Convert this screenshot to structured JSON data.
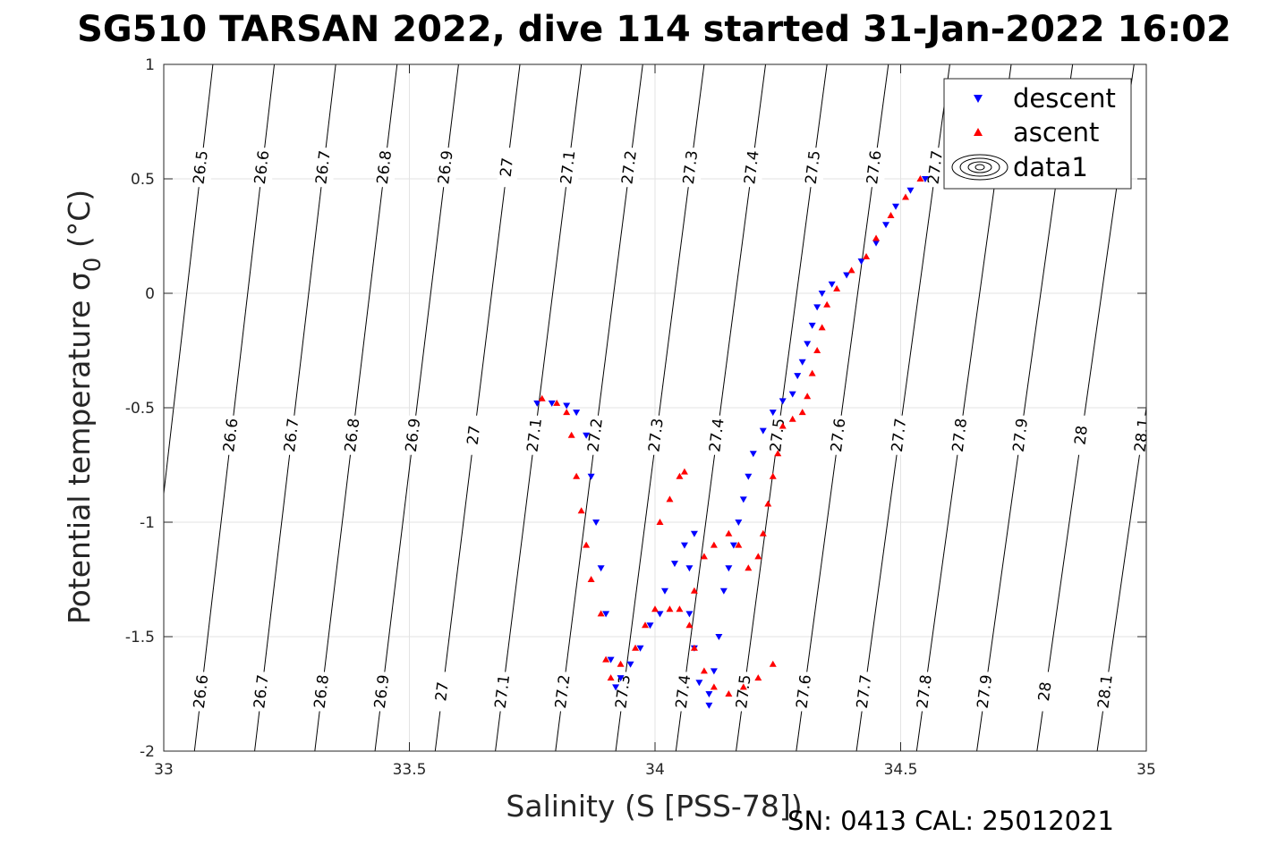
{
  "footer": "SN: 0413  CAL: 25012021",
  "chart_data": {
    "type": "scatter",
    "title": "SG510 TARSAN 2022, dive 114 started 31-Jan-2022 16:02",
    "xlabel": "Salinity (S [PSS-78])",
    "ylabel": "Potential temperature σ0 (°C)",
    "xlim": [
      33,
      35
    ],
    "ylim": [
      -2,
      1
    ],
    "xticks": [
      33,
      33.5,
      34,
      34.5,
      35
    ],
    "xtick_labels": [
      "33",
      "33.5",
      "34",
      "34.5",
      "35"
    ],
    "yticks": [
      -2,
      -1.5,
      -1,
      -0.5,
      0,
      0.5,
      1
    ],
    "ytick_labels": [
      "-2",
      "-1.5",
      "-1",
      "-0.5",
      "0",
      "0.5",
      "1"
    ],
    "grid": true,
    "legend_position": "top-right",
    "legend": [
      "descent",
      "ascent",
      "data1"
    ],
    "series": [
      {
        "name": "descent",
        "marker": "triangle-down",
        "color": "#0000ff",
        "points": [
          [
            34.55,
            0.5
          ],
          [
            34.52,
            0.45
          ],
          [
            34.49,
            0.38
          ],
          [
            34.47,
            0.3
          ],
          [
            34.45,
            0.22
          ],
          [
            34.42,
            0.14
          ],
          [
            34.39,
            0.08
          ],
          [
            34.36,
            0.04
          ],
          [
            34.34,
            0.0
          ],
          [
            34.33,
            -0.06
          ],
          [
            34.32,
            -0.14
          ],
          [
            34.31,
            -0.22
          ],
          [
            34.3,
            -0.3
          ],
          [
            34.29,
            -0.36
          ],
          [
            34.28,
            -0.44
          ],
          [
            34.26,
            -0.47
          ],
          [
            34.24,
            -0.52
          ],
          [
            34.22,
            -0.6
          ],
          [
            34.2,
            -0.7
          ],
          [
            34.19,
            -0.8
          ],
          [
            34.18,
            -0.9
          ],
          [
            34.17,
            -1.0
          ],
          [
            34.16,
            -1.1
          ],
          [
            34.15,
            -1.2
          ],
          [
            34.14,
            -1.3
          ],
          [
            34.13,
            -1.5
          ],
          [
            34.12,
            -1.65
          ],
          [
            34.11,
            -1.75
          ],
          [
            34.11,
            -1.8
          ],
          [
            34.09,
            -1.7
          ],
          [
            34.08,
            -1.55
          ],
          [
            34.07,
            -1.4
          ],
          [
            34.07,
            -1.2
          ],
          [
            34.08,
            -1.05
          ],
          [
            34.06,
            -1.1
          ],
          [
            34.04,
            -1.18
          ],
          [
            34.02,
            -1.3
          ],
          [
            34.01,
            -1.4
          ],
          [
            33.99,
            -1.45
          ],
          [
            33.97,
            -1.55
          ],
          [
            33.95,
            -1.62
          ],
          [
            33.93,
            -1.68
          ],
          [
            33.92,
            -1.72
          ],
          [
            33.91,
            -1.6
          ],
          [
            33.9,
            -1.4
          ],
          [
            33.89,
            -1.2
          ],
          [
            33.88,
            -1.0
          ],
          [
            33.87,
            -0.8
          ],
          [
            33.86,
            -0.62
          ],
          [
            33.84,
            -0.52
          ],
          [
            33.82,
            -0.49
          ],
          [
            33.79,
            -0.48
          ],
          [
            33.76,
            -0.48
          ]
        ]
      },
      {
        "name": "ascent",
        "marker": "triangle-up",
        "color": "#ff0000",
        "points": [
          [
            34.54,
            0.5
          ],
          [
            34.51,
            0.42
          ],
          [
            34.48,
            0.34
          ],
          [
            34.45,
            0.24
          ],
          [
            34.43,
            0.16
          ],
          [
            34.4,
            0.1
          ],
          [
            34.37,
            0.02
          ],
          [
            34.35,
            -0.05
          ],
          [
            34.34,
            -0.15
          ],
          [
            34.33,
            -0.25
          ],
          [
            34.32,
            -0.35
          ],
          [
            34.31,
            -0.45
          ],
          [
            34.3,
            -0.52
          ],
          [
            34.28,
            -0.55
          ],
          [
            34.26,
            -0.58
          ],
          [
            34.25,
            -0.7
          ],
          [
            34.24,
            -0.8
          ],
          [
            34.23,
            -0.92
          ],
          [
            34.22,
            -1.05
          ],
          [
            34.21,
            -1.15
          ],
          [
            34.19,
            -1.2
          ],
          [
            34.17,
            -1.1
          ],
          [
            34.15,
            -1.05
          ],
          [
            34.12,
            -1.1
          ],
          [
            34.1,
            -1.15
          ],
          [
            34.08,
            -1.3
          ],
          [
            34.07,
            -1.45
          ],
          [
            34.08,
            -1.55
          ],
          [
            34.1,
            -1.65
          ],
          [
            34.12,
            -1.72
          ],
          [
            34.15,
            -1.75
          ],
          [
            34.18,
            -1.72
          ],
          [
            34.21,
            -1.68
          ],
          [
            34.24,
            -1.62
          ],
          [
            34.05,
            -1.38
          ],
          [
            34.03,
            -1.38
          ],
          [
            34.0,
            -1.38
          ],
          [
            33.98,
            -1.45
          ],
          [
            33.96,
            -1.55
          ],
          [
            33.93,
            -1.62
          ],
          [
            33.91,
            -1.68
          ],
          [
            33.9,
            -1.6
          ],
          [
            33.89,
            -1.4
          ],
          [
            33.87,
            -1.25
          ],
          [
            33.86,
            -1.1
          ],
          [
            33.85,
            -0.95
          ],
          [
            33.84,
            -0.8
          ],
          [
            33.83,
            -0.62
          ],
          [
            33.82,
            -0.52
          ],
          [
            33.8,
            -0.48
          ],
          [
            33.77,
            -0.46
          ],
          [
            34.05,
            -0.8
          ],
          [
            34.06,
            -0.78
          ],
          [
            34.03,
            -0.9
          ],
          [
            34.01,
            -1.0
          ]
        ]
      }
    ],
    "contours": {
      "name": "data1",
      "label": "σ0 isopycnals",
      "levels": [
        26.5,
        26.6,
        26.7,
        26.8,
        26.9,
        27,
        27.1,
        27.2,
        27.3,
        27.4,
        27.5,
        27.6,
        27.7,
        27.8,
        27.9,
        28,
        28.1
      ],
      "level_labels": [
        "26.5",
        "26.6",
        "26.7",
        "26.8",
        "26.9",
        "27",
        "27.1",
        "27.2",
        "27.3",
        "27.4",
        "27.5",
        "27.6",
        "27.7",
        "27.8",
        "27.9",
        "28",
        "28.1"
      ],
      "top_row_levels": [
        "26.5",
        "26.6",
        "26.7",
        "26.8",
        "26.9",
        "27",
        "27.1",
        "27.2",
        "27.3",
        "27.4",
        "27.5",
        "27.6",
        "27.7"
      ],
      "mid_row_levels": [
        "26.6",
        "26.7",
        "26.8",
        "26.9",
        "27",
        "27.1",
        "27.2",
        "27.3",
        "27.4",
        "27.5",
        "27.6",
        "27.7",
        "27.8",
        "27.9",
        "28",
        "28.1"
      ],
      "bottom_row_levels": [
        "26.6",
        "26.7",
        "26.8",
        "26.9",
        "27",
        "27.1",
        "27.2",
        "27.3",
        "27.4",
        "27.5",
        "27.6",
        "27.7",
        "27.8",
        "27.9",
        "28",
        "28.1"
      ]
    }
  }
}
